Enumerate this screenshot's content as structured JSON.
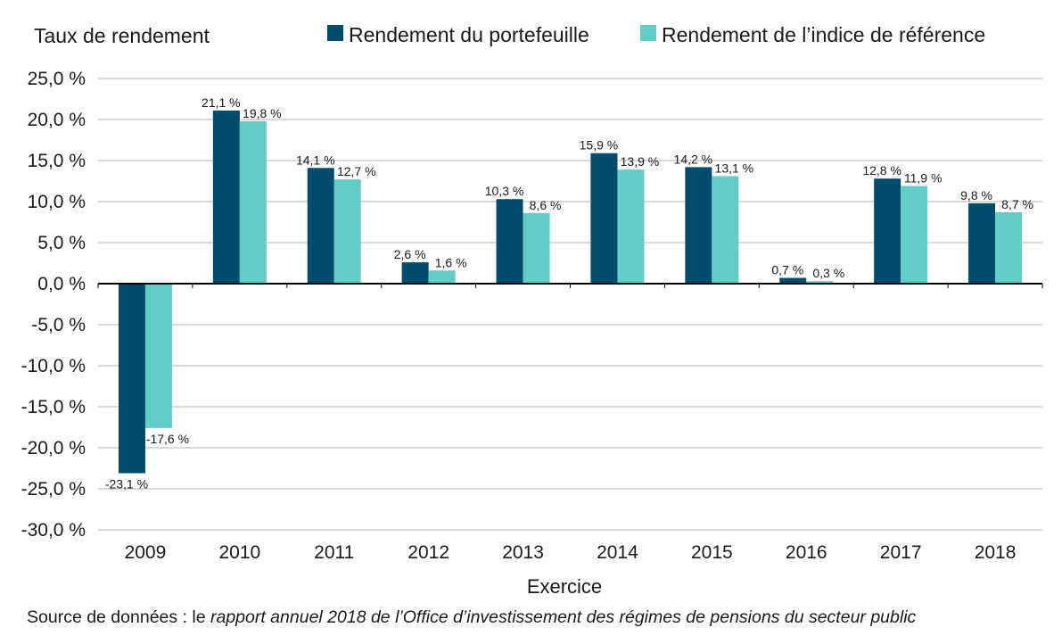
{
  "chart_data": {
    "type": "bar",
    "ylabel": "Taux de rendement",
    "xlabel": "Exercice",
    "categories": [
      "2009",
      "2010",
      "2011",
      "2012",
      "2013",
      "2014",
      "2015",
      "2016",
      "2017",
      "2018"
    ],
    "series": [
      {
        "name": "Rendement du portefeuille",
        "color": "#004c6d",
        "values": [
          -23.1,
          21.1,
          14.1,
          2.6,
          10.3,
          15.9,
          14.2,
          0.7,
          12.8,
          9.8
        ],
        "labels": [
          "-23,1 %",
          "21,1 %",
          "14,1 %",
          "2,6 %",
          "10,3 %",
          "15,9 %",
          "14,2 %",
          "0,7 %",
          "12,8 %",
          "9,8 %"
        ]
      },
      {
        "name": "Rendement de l’indice de référence",
        "color": "#62ccc7",
        "values": [
          -17.6,
          19.8,
          12.7,
          1.6,
          8.6,
          13.9,
          13.1,
          0.3,
          11.9,
          8.7
        ],
        "labels": [
          "-17,6 %",
          "19,8 %",
          "12,7 %",
          "1,6 %",
          "8,6 %",
          "13,9 %",
          "13,1 %",
          "0,3 %",
          "11,9 %",
          "8,7 %"
        ]
      }
    ],
    "ylim": [
      -30,
      25
    ],
    "yticks": [
      25,
      20,
      15,
      10,
      5,
      0,
      -5,
      -10,
      -15,
      -20,
      -25,
      -30
    ],
    "ytick_labels": [
      "25,0 %",
      "20,0 %",
      "15,0 %",
      "10,0 %",
      "5,0 %",
      "0,0 %",
      "-5,0 %",
      "-10,0 %",
      "-15,0 %",
      "-20,0 %",
      "-25,0 %",
      "-30,0 %"
    ],
    "grid": true,
    "legend": "top",
    "colors": {
      "gridline": "#b3b3b3",
      "zero_axis": "#000000"
    }
  },
  "source": {
    "prefix": "Source de données : le ",
    "emphasis": "rapport annuel 2018 de l’Office d’investissement des régimes de pensions du secteur public"
  }
}
